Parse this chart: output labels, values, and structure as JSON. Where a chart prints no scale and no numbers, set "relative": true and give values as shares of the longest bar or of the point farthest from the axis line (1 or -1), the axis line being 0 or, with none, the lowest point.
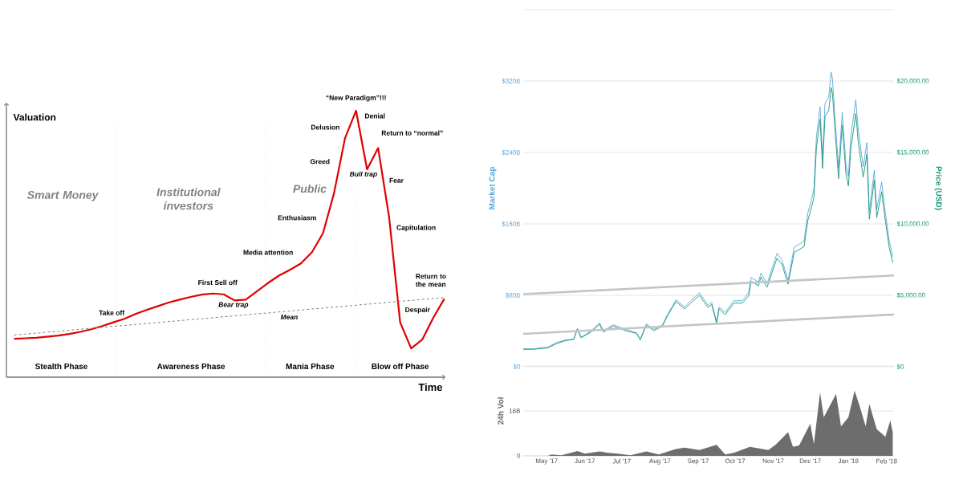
{
  "chart_data": [
    {
      "type": "line",
      "relative": true,
      "xlabel": "Time",
      "ylabel": "Valuation",
      "tick_labels": false,
      "categories": [
        null,
        null,
        null,
        null,
        null,
        null,
        null,
        null,
        null,
        null,
        null,
        null,
        null,
        null,
        null,
        null,
        null,
        null,
        null,
        null,
        null,
        null,
        null,
        null,
        null,
        null,
        null,
        null,
        null,
        null,
        null,
        null,
        null,
        null,
        null,
        null,
        null,
        null,
        null,
        null
      ],
      "series": [
        {
          "color": "#e00000",
          "values": [
            0.144,
            0.146,
            0.148,
            0.152,
            0.156,
            0.162,
            0.17,
            0.18,
            0.192,
            0.206,
            0.219,
            0.237,
            0.252,
            0.266,
            0.28,
            0.291,
            0.301,
            0.31,
            0.314,
            0.311,
            0.288,
            0.291,
            0.322,
            0.353,
            0.381,
            0.403,
            0.427,
            0.469,
            0.54,
            0.69,
            0.897,
            1,
            0.78,
            0.86,
            0.6,
            0.205,
            0.108,
            0.141,
            0.223,
            0.294
          ]
        },
        {
          "color": "#808080",
          "line_style": "dashed",
          "values": [
            0.158,
            0.162,
            0.165,
            0.169,
            0.172,
            0.176,
            0.18,
            0.183,
            0.187,
            0.191,
            0.194,
            0.198,
            0.201,
            0.205,
            0.209,
            0.212,
            0.216,
            0.219,
            0.223,
            0.227,
            0.23,
            0.234,
            0.238,
            0.241,
            0.245,
            0.248,
            0.252,
            0.256,
            0.259,
            0.263,
            0.266,
            0.27,
            0.274,
            0.277,
            0.281,
            0.285,
            0.288,
            0.292,
            0.295,
            0.299
          ]
        }
      ],
      "annotations": [
        "Smart Money",
        "Institutional investors",
        "Public",
        "Stealth Phase",
        "Awareness Phase",
        "Mania Phase",
        "Blow off Phase",
        "Take off",
        "First Sell off",
        "Bear trap",
        "Media attention",
        "Enthusiasm",
        "Greed",
        "Delusion",
        "“New Paradigm”!!!",
        "Denial",
        "Return to “normal”",
        "Bull trap",
        "Fear",
        "Capitulation",
        "Despair",
        "Return to the mean",
        "Mean"
      ]
    },
    {
      "type": "line",
      "ylabel": "Market Cap",
      "y2label": "Price (USD)",
      "xlim": [
        "2017-04-12",
        "2018-02-07"
      ],
      "ylim": [
        0,
        400
      ],
      "y2lim": [
        0,
        25000
      ],
      "grid": "y",
      "tick_labels": "y",
      "yticks": [
        {
          "value": 0,
          "label": "$0"
        },
        {
          "value": 80,
          "label": "$80B"
        },
        {
          "value": 160,
          "label": "$160B"
        },
        {
          "value": 240,
          "label": "$240B"
        },
        {
          "value": 320,
          "label": "$320B"
        },
        {
          "value": 400,
          "label": null
        }
      ],
      "y2ticks": [
        {
          "value": 0,
          "label": "$0"
        },
        {
          "value": 5000,
          "label": "$5,000.00"
        },
        {
          "value": 10000,
          "label": "$10,000.00"
        },
        {
          "value": 15000,
          "label": "$15,000.00"
        },
        {
          "value": 20000,
          "label": "$20,000.00"
        },
        {
          "value": 25000,
          "label": null
        }
      ],
      "x": [
        "2017-04-12",
        "2017-04-20",
        "2017-05-02",
        "2017-05-09",
        "2017-05-16",
        "2017-05-23",
        "2017-05-26",
        "2017-05-29",
        "2017-06-06",
        "2017-06-13",
        "2017-06-16",
        "2017-06-24",
        "2017-07-04",
        "2017-07-13",
        "2017-07-16",
        "2017-07-21",
        "2017-07-27",
        "2017-08-03",
        "2017-08-07",
        "2017-08-14",
        "2017-08-21",
        "2017-08-26",
        "2017-09-02",
        "2017-09-09",
        "2017-09-12",
        "2017-09-16",
        "2017-09-18",
        "2017-09-23",
        "2017-09-30",
        "2017-10-07",
        "2017-10-12",
        "2017-10-14",
        "2017-10-20",
        "2017-10-22",
        "2017-10-27",
        "2017-11-04",
        "2017-11-08",
        "2017-11-13",
        "2017-11-18",
        "2017-11-22",
        "2017-11-26",
        "2017-11-29",
        "2017-12-02",
        "2017-12-04",
        "2017-12-06",
        "2017-12-09",
        "2017-12-11",
        "2017-12-13",
        "2017-12-16",
        "2017-12-18",
        "2017-12-19",
        "2017-12-21",
        "2017-12-24",
        "2017-12-27",
        "2017-12-30",
        "2018-01-01",
        "2018-01-03",
        "2018-01-07",
        "2018-01-09",
        "2018-01-13",
        "2018-01-16",
        "2018-01-18",
        "2018-01-22",
        "2018-01-24",
        "2018-01-28",
        "2018-01-30",
        "2018-02-03",
        "2018-02-06"
      ],
      "series": [
        {
          "color": "#5aa6dc",
          "values": [
            20,
            20,
            22,
            27,
            30,
            31,
            43,
            33,
            40,
            49,
            40,
            47,
            42,
            38,
            31,
            48,
            42,
            47,
            58,
            75,
            67,
            74,
            83,
            69,
            72,
            50,
            67,
            61,
            74,
            74,
            83,
            100,
            95,
            105,
            93,
            127,
            120,
            97,
            134,
            137,
            141,
            172,
            187,
            199,
            257,
            291,
            233,
            295,
            302,
            330,
            323,
            282,
            222,
            285,
            227,
            213,
            258,
            299,
            265,
            224,
            251,
            174,
            220,
            176,
            207,
            183,
            142,
            123
          ]
        },
        {
          "color": "#16967a",
          "axis": "y2",
          "values": [
            1220,
            1220,
            1320,
            1620,
            1820,
            1920,
            2630,
            2030,
            2430,
            2980,
            2430,
            2840,
            2530,
            2330,
            1880,
            2900,
            2530,
            2840,
            3550,
            4560,
            4050,
            4460,
            5000,
            4150,
            4360,
            3040,
            4050,
            3650,
            4460,
            4460,
            4960,
            5980,
            5670,
            6280,
            5570,
            7600,
            7190,
            5780,
            8000,
            8210,
            8410,
            10230,
            11150,
            11850,
            15300,
            17330,
            13880,
            17530,
            17930,
            19550,
            19150,
            16720,
            13170,
            16920,
            13470,
            12660,
            15300,
            17730,
            15700,
            13270,
            14890,
            10330,
            13070,
            10440,
            12260,
            10840,
            8410,
            7290
          ]
        },
        {
          "color": "#c4c4c4",
          "axis": "y2",
          "x": [
            "2017-04-12",
            "2018-02-07"
          ],
          "values": [
            5080,
            6390
          ]
        },
        {
          "color": "#c4c4c4",
          "axis": "y2",
          "x": [
            "2017-04-12",
            "2018-02-07"
          ],
          "values": [
            2300,
            3660
          ]
        }
      ]
    },
    {
      "type": "area",
      "ylabel": "24h Vol",
      "xlim": [
        "2017-04-12",
        "2018-02-07"
      ],
      "ylim": [
        0,
        32
      ],
      "grid": "y",
      "yticks": [
        0,
        {
          "value": 16,
          "label": "16B"
        },
        {
          "value": 32,
          "label": null
        }
      ],
      "xticks": [
        {
          "value": "2017-05-01",
          "label": "May '17"
        },
        {
          "value": "2017-06-01",
          "label": "Jun '17"
        },
        {
          "value": "2017-07-01",
          "label": "Jul '17"
        },
        {
          "value": "2017-08-01",
          "label": "Aug '17"
        },
        {
          "value": "2017-09-01",
          "label": "Sep '17"
        },
        {
          "value": "2017-10-01",
          "label": "Oct '17"
        },
        {
          "value": "2017-11-01",
          "label": "Nov '17"
        },
        {
          "value": "2017-12-01",
          "label": "Dec '17"
        },
        {
          "value": "2018-01-01",
          "label": "Jan '18"
        },
        {
          "value": "2018-02-01",
          "label": "Feb '18"
        }
      ],
      "x": [
        "2017-05-02",
        "2017-05-05",
        "2017-05-13",
        "2017-05-18",
        "2017-05-26",
        "2017-06-01",
        "2017-06-13",
        "2017-06-20",
        "2017-06-29",
        "2017-07-08",
        "2017-07-21",
        "2017-07-31",
        "2017-08-14",
        "2017-08-21",
        "2017-09-02",
        "2017-09-16",
        "2017-09-23",
        "2017-09-30",
        "2017-10-13",
        "2017-10-28",
        "2017-11-03",
        "2017-11-13",
        "2017-11-17",
        "2017-11-22",
        "2017-12-01",
        "2017-12-04",
        "2017-12-09",
        "2017-12-12",
        "2017-12-22",
        "2017-12-26",
        "2018-01-01",
        "2018-01-06",
        "2018-01-10",
        "2018-01-15",
        "2018-01-18",
        "2018-01-24",
        "2018-01-31",
        "2018-02-04",
        "2018-02-06"
      ],
      "series": [
        {
          "color": "#6d6d6d",
          "values": [
            0,
            0.5,
            0.2,
            0.8,
            1.7,
            0.8,
            1.6,
            1.1,
            0.7,
            0.2,
            1.6,
            0.5,
            2.4,
            2.9,
            2.1,
            3.9,
            0.5,
            1.1,
            3.2,
            2.1,
            4.0,
            8.4,
            3.2,
            3.7,
            11.4,
            4.2,
            22.6,
            13.7,
            22.1,
            10.5,
            13.7,
            23.2,
            17.9,
            10.5,
            18.4,
            9.5,
            6.8,
            12.6,
            8.4
          ]
        }
      ]
    }
  ]
}
